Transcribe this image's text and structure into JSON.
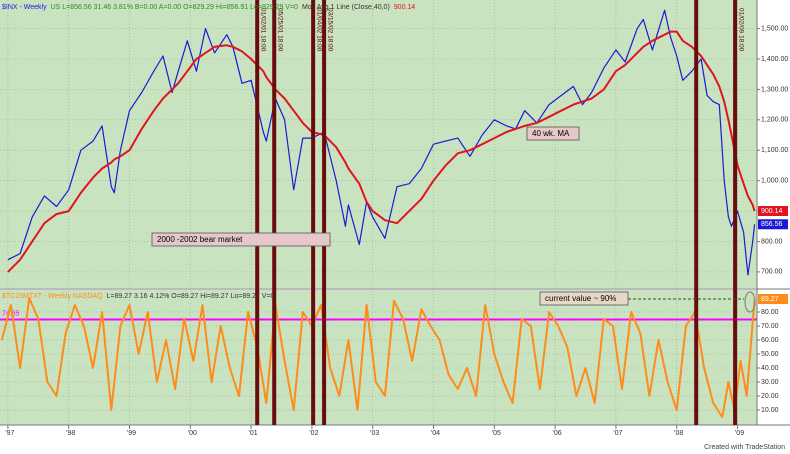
{
  "chart_data": [
    {
      "type": "line",
      "title": "$INX - Weekly",
      "header_stats": "US  L=856.56 31.46 3.81% B=0.00 A=0.00 O=829.29 Hi=856.91 Lo=829.29 V=0",
      "x": [
        1997.0,
        1997.2,
        1997.4,
        1997.6,
        1997.8,
        1998.0,
        1998.2,
        1998.4,
        1998.55,
        1998.7,
        1998.75,
        1998.85,
        1999.0,
        1999.2,
        1999.4,
        1999.55,
        1999.7,
        1999.8,
        1999.95,
        2000.1,
        2000.25,
        2000.4,
        2000.6,
        2000.7,
        2000.85,
        2001.0,
        2001.2,
        2001.25,
        2001.4,
        2001.55,
        2001.7,
        2001.85,
        2002.0,
        2002.2,
        2002.4,
        2002.55,
        2002.6,
        2002.78,
        2002.9,
        2003.0,
        2003.2,
        2003.4,
        2003.6,
        2003.8,
        2004.0,
        2004.2,
        2004.4,
        2004.6,
        2004.8,
        2005.0,
        2005.2,
        2005.35,
        2005.5,
        2005.7,
        2005.9,
        2006.1,
        2006.3,
        2006.45,
        2006.6,
        2006.8,
        2007.0,
        2007.15,
        2007.35,
        2007.45,
        2007.6,
        2007.8,
        2007.9,
        2008.0,
        2008.1,
        2008.25,
        2008.4,
        2008.5,
        2008.6,
        2008.7,
        2008.78,
        2008.85,
        2008.9,
        2009.0,
        2009.1,
        2009.17,
        2009.25,
        2009.28
      ],
      "series": [
        {
          "name": "$INX - Weekly",
          "color": "#1a1ad6",
          "last_value_label": "856.56",
          "values": [
            740,
            760,
            880,
            950,
            915,
            970,
            1100,
            1130,
            1180,
            980,
            960,
            1100,
            1230,
            1290,
            1360,
            1410,
            1290,
            1360,
            1460,
            1360,
            1500,
            1420,
            1480,
            1440,
            1320,
            1330,
            1160,
            1130,
            1270,
            1200,
            970,
            1140,
            1140,
            1160,
            1000,
            850,
            920,
            790,
            930,
            880,
            810,
            980,
            990,
            1040,
            1120,
            1130,
            1140,
            1080,
            1150,
            1200,
            1180,
            1170,
            1230,
            1190,
            1250,
            1280,
            1310,
            1250,
            1290,
            1370,
            1430,
            1390,
            1500,
            1530,
            1430,
            1560,
            1470,
            1410,
            1330,
            1360,
            1400,
            1280,
            1260,
            1250,
            1000,
            880,
            850,
            900,
            830,
            690,
            800,
            856.56
          ]
        },
        {
          "name": "Mov Avg 1 Line (Close,40,0)",
          "color": "#e0141e",
          "last_value_label": "900.14",
          "values": [
            700,
            740,
            800,
            860,
            890,
            900,
            960,
            1010,
            1040,
            1060,
            1070,
            1080,
            1100,
            1170,
            1230,
            1270,
            1300,
            1320,
            1360,
            1400,
            1420,
            1440,
            1445,
            1440,
            1425,
            1400,
            1360,
            1340,
            1300,
            1270,
            1230,
            1190,
            1160,
            1150,
            1110,
            1060,
            1040,
            990,
            930,
            900,
            870,
            860,
            900,
            940,
            1000,
            1050,
            1090,
            1100,
            1120,
            1140,
            1160,
            1170,
            1180,
            1190,
            1210,
            1230,
            1250,
            1260,
            1270,
            1300,
            1360,
            1380,
            1420,
            1440,
            1460,
            1480,
            1490,
            1490,
            1460,
            1440,
            1410,
            1380,
            1350,
            1310,
            1260,
            1200,
            1150,
            1050,
            990,
            950,
            920,
            900.14
          ]
        }
      ],
      "xlim": [
        1996.87,
        2009.32
      ],
      "xticks": [
        {
          "value": 1997,
          "label": "'97"
        },
        {
          "value": 1998,
          "label": "'98"
        },
        {
          "value": 1999,
          "label": "'99"
        },
        {
          "value": 2000,
          "label": "'00"
        },
        {
          "value": 2001,
          "label": "'01"
        },
        {
          "value": 2002,
          "label": "'02"
        },
        {
          "value": 2003,
          "label": "'03"
        },
        {
          "value": 2004,
          "label": "'04"
        },
        {
          "value": 2005,
          "label": "'05"
        },
        {
          "value": 2006,
          "label": "'06"
        },
        {
          "value": 2007,
          "label": "'07"
        },
        {
          "value": 2008,
          "label": "'08"
        },
        {
          "value": 2009,
          "label": "'09"
        }
      ],
      "ylim": [
        647,
        1594
      ],
      "yticks": [
        {
          "value": 700,
          "label": "700.00"
        },
        {
          "value": 800,
          "label": "800.00"
        },
        {
          "value": 900,
          "label": "900.00"
        },
        {
          "value": 1000,
          "label": "1,000.00"
        },
        {
          "value": 1100,
          "label": "1,100.00"
        },
        {
          "value": 1200,
          "label": "1,200.00"
        },
        {
          "value": 1300,
          "label": "1,300.00"
        },
        {
          "value": 1400,
          "label": "1,400.00"
        },
        {
          "value": 1500,
          "label": "1,500.00"
        }
      ],
      "grid": true,
      "events": [
        {
          "x": 2001.1,
          "label": "01/02/01 18:00"
        },
        {
          "x": 2001.38,
          "label": "05/25/01 18:00"
        },
        {
          "x": 2002.02,
          "label": "01/04/02 18:00"
        },
        {
          "x": 2002.2,
          "label": "03/15/02 18:00"
        },
        {
          "x": 2008.32,
          "label": null
        },
        {
          "x": 2008.96,
          "label": "01/02/09 18:00"
        }
      ],
      "annotations": [
        "40 wk. MA",
        "2000 -2002 bear market"
      ]
    },
    {
      "type": "line",
      "title": "$TC15MTXT - Weekly  NASDAQ",
      "header_stats": "L=89.27 3.16 4.12% O=89.27 Hi=89.27 Lo=89.27 V=0",
      "x": [
        1996.9,
        1997.05,
        1997.2,
        1997.35,
        1997.5,
        1997.65,
        1997.8,
        1997.95,
        1998.1,
        1998.25,
        1998.4,
        1998.55,
        1998.7,
        1998.85,
        1999.0,
        1999.15,
        1999.3,
        1999.45,
        1999.6,
        1999.75,
        1999.9,
        2000.05,
        2000.2,
        2000.35,
        2000.5,
        2000.65,
        2000.8,
        2000.95,
        2001.1,
        2001.25,
        2001.4,
        2001.55,
        2001.7,
        2001.85,
        2002.0,
        2002.15,
        2002.3,
        2002.45,
        2002.6,
        2002.75,
        2002.9,
        2003.05,
        2003.2,
        2003.35,
        2003.5,
        2003.65,
        2003.8,
        2003.95,
        2004.1,
        2004.25,
        2004.4,
        2004.55,
        2004.7,
        2004.85,
        2005.0,
        2005.15,
        2005.3,
        2005.45,
        2005.6,
        2005.75,
        2005.9,
        2006.05,
        2006.2,
        2006.35,
        2006.5,
        2006.65,
        2006.8,
        2006.95,
        2007.1,
        2007.25,
        2007.4,
        2007.55,
        2007.7,
        2007.85,
        2008.0,
        2008.15,
        2008.3,
        2008.45,
        2008.6,
        2008.75,
        2008.85,
        2008.95,
        2009.05,
        2009.15,
        2009.28
      ],
      "series": [
        {
          "name": "$TC15MTXT",
          "color": "#ff8c1a",
          "last_value_label": "89.27",
          "values": [
            60,
            85,
            40,
            90,
            75,
            30,
            20,
            65,
            85,
            70,
            40,
            80,
            10,
            70,
            85,
            50,
            80,
            30,
            60,
            25,
            75,
            45,
            85,
            30,
            70,
            40,
            20,
            80,
            55,
            15,
            85,
            45,
            10,
            80,
            70,
            85,
            40,
            20,
            60,
            10,
            85,
            30,
            20,
            88,
            75,
            45,
            82,
            70,
            60,
            35,
            25,
            40,
            20,
            85,
            50,
            30,
            15,
            75,
            70,
            25,
            80,
            70,
            55,
            20,
            40,
            15,
            75,
            70,
            25,
            80,
            65,
            20,
            60,
            30,
            10,
            70,
            80,
            40,
            15,
            5,
            30,
            10,
            45,
            20,
            89.27
          ]
        }
      ],
      "level": {
        "value": 74.65,
        "label": "74.65",
        "color": "#ff00ff"
      },
      "ylim": [
        -0.7,
        95.7
      ],
      "yticks": [
        {
          "value": 10,
          "label": "10.00"
        },
        {
          "value": 20,
          "label": "20.00"
        },
        {
          "value": 30,
          "label": "30.00"
        },
        {
          "value": 40,
          "label": "40.00"
        },
        {
          "value": 50,
          "label": "50.00"
        },
        {
          "value": 60,
          "label": "60.00"
        },
        {
          "value": 70,
          "label": "70.00"
        },
        {
          "value": 80,
          "label": "80.00"
        }
      ],
      "grid": true,
      "annotations": [
        "current value ~ 90%"
      ]
    }
  ],
  "footer": "Created with TradeStation"
}
